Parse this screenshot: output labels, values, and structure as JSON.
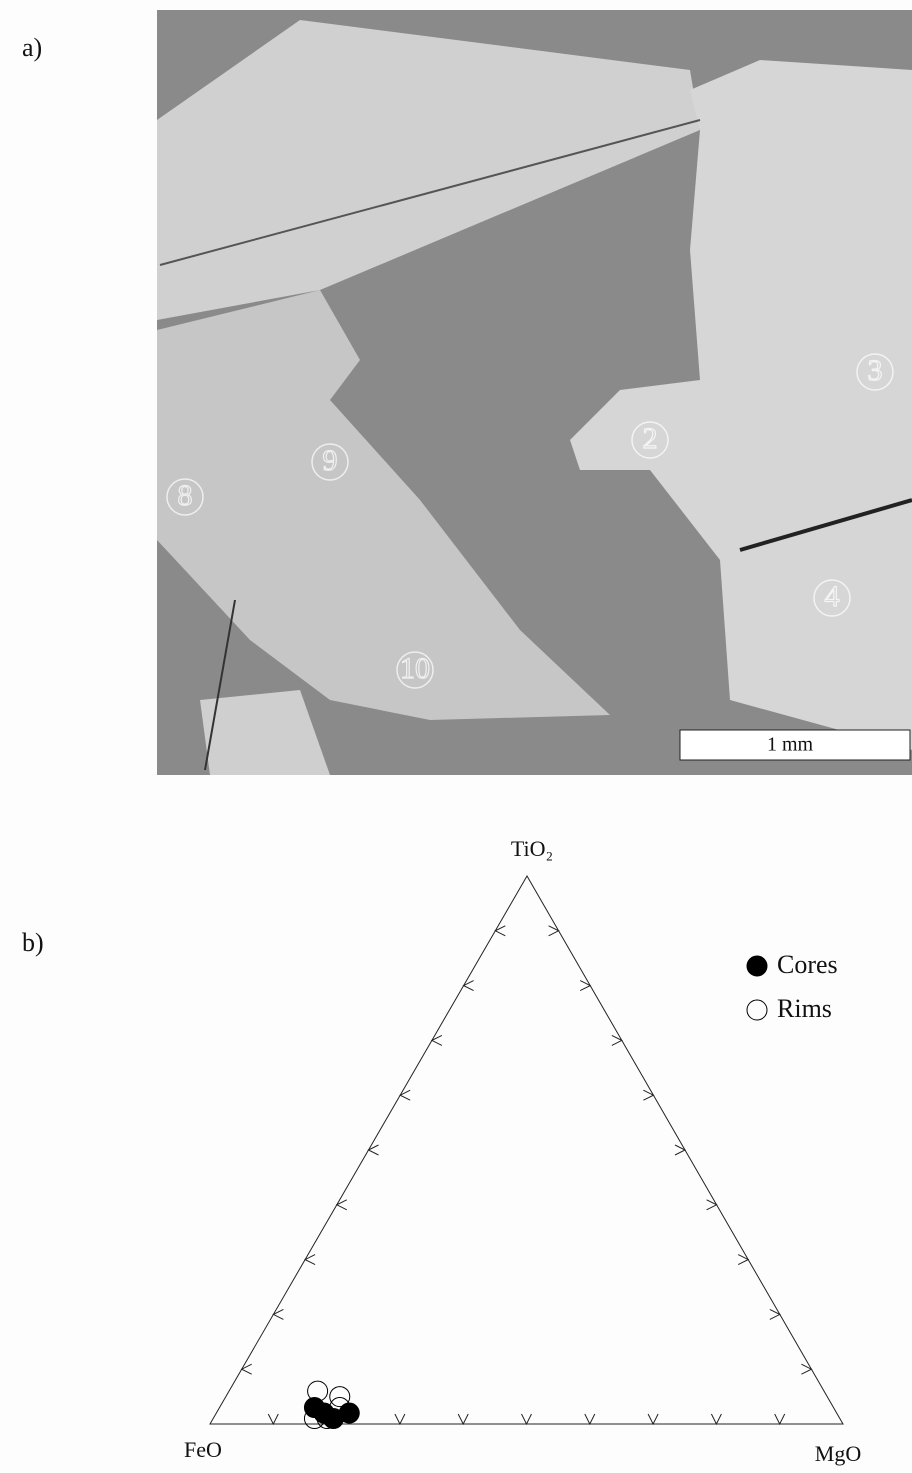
{
  "panel_a": {
    "label": "a)",
    "scale_bar": "1 mm",
    "spots": [
      "2",
      "3",
      "4",
      "8",
      "9",
      "10"
    ]
  },
  "chart_data": {
    "type": "ternary",
    "label": "b)",
    "axes": {
      "left": "FeO",
      "right": "MgO",
      "top": "TiO₂"
    },
    "ticks": [
      10,
      20,
      30,
      40,
      50,
      60,
      70,
      80,
      90
    ],
    "series": [
      {
        "name": "Cores",
        "color": "#000000",
        "filled": true,
        "FeO": [
          82,
          80,
          77,
          81
        ],
        "MgO": [
          15,
          19,
          21,
          17
        ],
        "TiO2": [
          3,
          1,
          2,
          2
        ]
      },
      {
        "name": "Rims",
        "color": "#000000",
        "filled": false,
        "FeO": [
          80,
          77,
          83,
          81,
          78
        ],
        "MgO": [
          14,
          18,
          16,
          18,
          19
        ],
        "TiO2": [
          6,
          5,
          1,
          1,
          3
        ]
      }
    ]
  }
}
